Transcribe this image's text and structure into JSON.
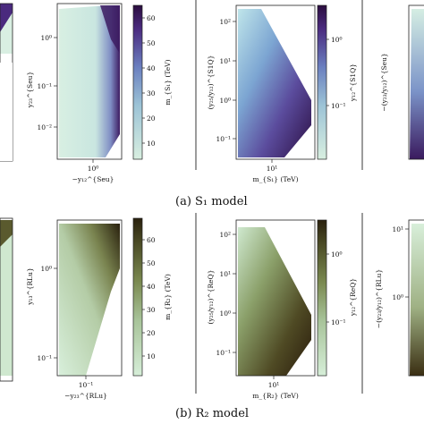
{
  "captions": {
    "row1": "(a)  S₁ model",
    "row2": "(b)  R₂ model"
  },
  "row1": {
    "panel_a": {
      "ylabel": "y₂₃^{Seu}",
      "xlabel": "−y₁₂^{Seu}",
      "yticks": [
        "10⁰",
        "10⁻¹",
        "10⁻²"
      ],
      "xticks": [
        "10⁰"
      ],
      "colorbar_label": "m_{S₁} (TeV)",
      "colorbar_ticks": [
        "60",
        "50",
        "40",
        "30",
        "20",
        "10"
      ]
    },
    "panel_b": {
      "ylabel": "(y₂₅/y₁₂)^{S1Q}",
      "xlabel": "m_{S₁} (TeV)",
      "yticks": [
        "10²",
        "10¹",
        "10⁰",
        "10⁻¹"
      ],
      "xticks": [
        "10¹"
      ],
      "colorbar_label": "y₁₂^{S1Q}",
      "colorbar_ticks": [
        "10⁰",
        "10⁻¹"
      ]
    },
    "panel_c": {
      "ylabel": "−(y₂₃/y₁₂)^{Seu}"
    }
  },
  "row2": {
    "panel_a": {
      "ylabel": "y₁₃^{RLu}",
      "xlabel": "−y₂₃^{RLu}",
      "yticks": [
        "10⁰",
        "10⁻¹"
      ],
      "xticks": [
        "10⁻¹"
      ],
      "colorbar_label": "m_{R₂} (TeV)",
      "colorbar_ticks": [
        "60",
        "50",
        "40",
        "30",
        "20",
        "10"
      ]
    },
    "panel_b": {
      "ylabel": "(y₂₅/y₁₂)^{ReQ}",
      "xlabel": "m_{R₂} (TeV)",
      "yticks": [
        "10²",
        "10¹",
        "10⁰",
        "10⁻¹"
      ],
      "xticks": [
        "10¹"
      ],
      "colorbar_label": "y₁₂^{ReQ}",
      "colorbar_ticks": [
        "10⁰",
        "10⁻¹"
      ]
    },
    "panel_c": {
      "ylabel": "−(y₂₃/y₁₂)^{RLu}",
      "yticks": [
        "10¹",
        "10⁰"
      ]
    }
  }
}
